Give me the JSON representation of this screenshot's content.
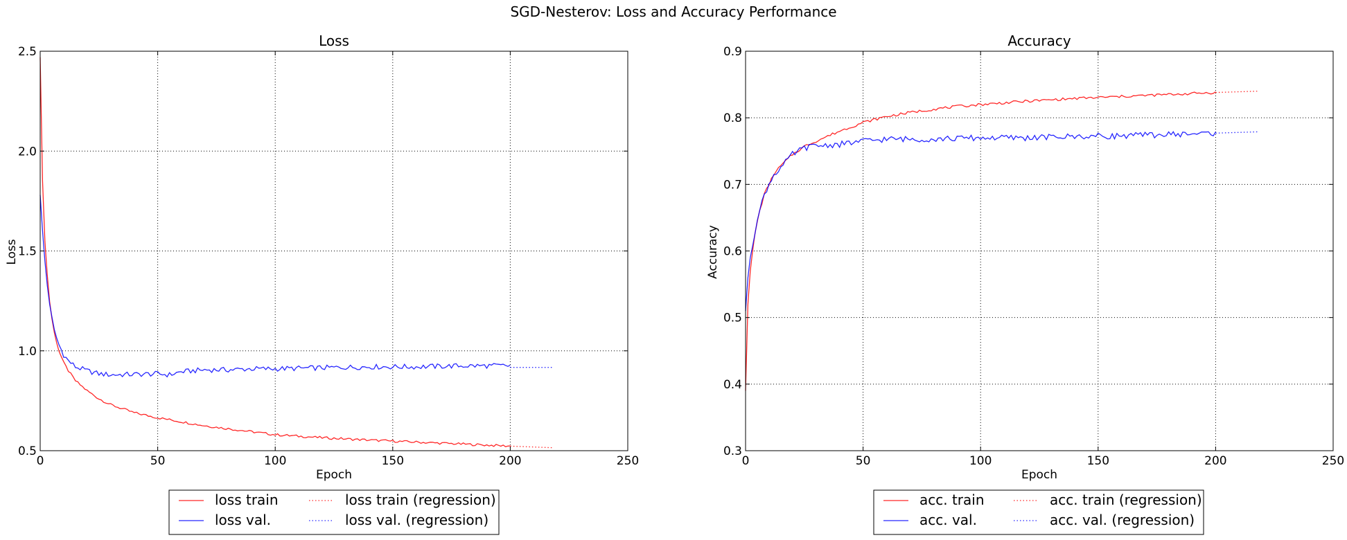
{
  "figure_title": "SGD-Nesterov: Loss and Accuracy Performance",
  "colors": {
    "train": "#ff0000",
    "val": "#0000ff",
    "grid": "#000000",
    "background": "#ffffff"
  },
  "chart_data": [
    {
      "type": "line",
      "title": "Loss",
      "xlabel": "Epoch",
      "ylabel": "Loss",
      "xlim": [
        0,
        250
      ],
      "ylim": [
        0.5,
        2.5
      ],
      "xticks": [
        0,
        50,
        100,
        150,
        200,
        250
      ],
      "yticks": [
        0.5,
        1.0,
        1.5,
        2.0,
        2.5
      ],
      "xtick_labels": [
        "0",
        "50",
        "100",
        "150",
        "200",
        "250"
      ],
      "ytick_labels": [
        "0.5",
        "1.0",
        "1.5",
        "2.0",
        "2.5"
      ],
      "grid": true,
      "legend_position": "below plot",
      "series": [
        {
          "name": "loss train",
          "style": "solid",
          "color": "#ff0000",
          "x": [
            0,
            1,
            2,
            3,
            4,
            5,
            6,
            8,
            10,
            12,
            15,
            20,
            25,
            30,
            40,
            50,
            60,
            70,
            80,
            90,
            100,
            120,
            140,
            160,
            180,
            200
          ],
          "y": [
            2.47,
            1.85,
            1.55,
            1.38,
            1.25,
            1.16,
            1.09,
            1.0,
            0.94,
            0.9,
            0.85,
            0.8,
            0.76,
            0.73,
            0.69,
            0.665,
            0.645,
            0.625,
            0.61,
            0.595,
            0.58,
            0.565,
            0.553,
            0.543,
            0.533,
            0.523
          ],
          "noise": 0.006
        },
        {
          "name": "loss val.",
          "style": "solid",
          "color": "#0000ff",
          "x": [
            0,
            1,
            2,
            3,
            4,
            5,
            6,
            8,
            10,
            12,
            15,
            20,
            25,
            30,
            40,
            50,
            55,
            60,
            70,
            80,
            90,
            100,
            120,
            140,
            160,
            180,
            200
          ],
          "y": [
            1.78,
            1.6,
            1.45,
            1.33,
            1.24,
            1.16,
            1.1,
            1.03,
            0.98,
            0.95,
            0.92,
            0.9,
            0.885,
            0.88,
            0.882,
            0.885,
            0.88,
            0.895,
            0.905,
            0.905,
            0.91,
            0.91,
            0.915,
            0.92,
            0.92,
            0.925,
            0.925
          ],
          "noise": 0.013
        },
        {
          "name": "loss train (regression)",
          "style": "dotted",
          "color": "#ff0000",
          "x": [
            200,
            218
          ],
          "y": [
            0.523,
            0.515
          ]
        },
        {
          "name": "loss val. (regression)",
          "style": "dotted",
          "color": "#0000ff",
          "x": [
            200,
            218
          ],
          "y": [
            0.917,
            0.917
          ]
        }
      ]
    },
    {
      "type": "line",
      "title": "Accuracy",
      "xlabel": "Epoch",
      "ylabel": "Accuracy",
      "xlim": [
        0,
        250
      ],
      "ylim": [
        0.3,
        0.9
      ],
      "xticks": [
        0,
        50,
        100,
        150,
        200,
        250
      ],
      "yticks": [
        0.3,
        0.4,
        0.5,
        0.6,
        0.7,
        0.8,
        0.9
      ],
      "xtick_labels": [
        "0",
        "50",
        "100",
        "150",
        "200",
        "250"
      ],
      "ytick_labels": [
        "0.3",
        "0.4",
        "0.5",
        "0.6",
        "0.7",
        "0.8",
        "0.9"
      ],
      "grid": true,
      "legend_position": "below plot",
      "series": [
        {
          "name": "acc. train",
          "style": "solid",
          "color": "#ff0000",
          "x": [
            0,
            1,
            2,
            3,
            4,
            5,
            6,
            8,
            10,
            12,
            15,
            20,
            25,
            30,
            40,
            50,
            60,
            70,
            80,
            90,
            100,
            120,
            140,
            160,
            180,
            200
          ],
          "y": [
            0.39,
            0.52,
            0.57,
            0.6,
            0.625,
            0.645,
            0.66,
            0.685,
            0.7,
            0.715,
            0.728,
            0.745,
            0.757,
            0.765,
            0.78,
            0.793,
            0.802,
            0.808,
            0.813,
            0.817,
            0.82,
            0.825,
            0.829,
            0.832,
            0.835,
            0.838
          ],
          "noise": 0.002
        },
        {
          "name": "acc. val.",
          "style": "solid",
          "color": "#0000ff",
          "x": [
            0,
            1,
            2,
            3,
            4,
            5,
            6,
            8,
            10,
            12,
            15,
            20,
            25,
            30,
            40,
            50,
            60,
            80,
            100,
            120,
            140,
            160,
            180,
            200
          ],
          "y": [
            0.51,
            0.56,
            0.59,
            0.61,
            0.63,
            0.65,
            0.66,
            0.685,
            0.7,
            0.715,
            0.725,
            0.745,
            0.755,
            0.758,
            0.76,
            0.765,
            0.768,
            0.768,
            0.77,
            0.77,
            0.772,
            0.773,
            0.775,
            0.777
          ],
          "noise": 0.0045
        },
        {
          "name": "acc. train (regression)",
          "style": "dotted",
          "color": "#ff0000",
          "x": [
            200,
            218
          ],
          "y": [
            0.838,
            0.84
          ]
        },
        {
          "name": "acc. val. (regression)",
          "style": "dotted",
          "color": "#0000ff",
          "x": [
            200,
            218
          ],
          "y": [
            0.777,
            0.779
          ]
        }
      ]
    }
  ]
}
